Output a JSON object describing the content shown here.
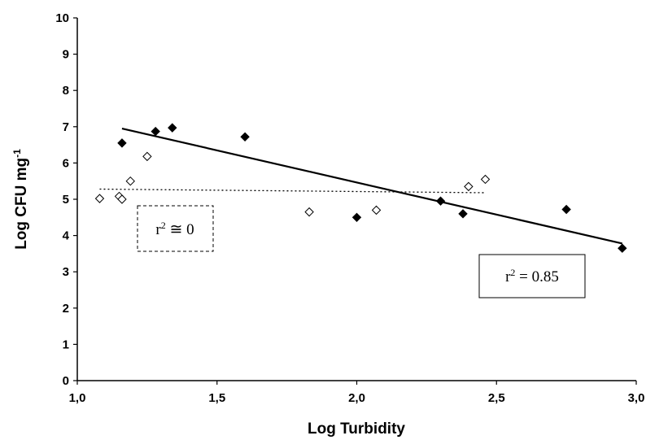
{
  "chart_data": {
    "type": "scatter",
    "title": "",
    "xlabel": "Log Turbidity",
    "ylabel_main": "Log CFU mg",
    "ylabel_sup": "-1",
    "xlim": [
      1.0,
      3.0
    ],
    "ylim": [
      0,
      10
    ],
    "x_ticks": [
      "1,0",
      "1,5",
      "2,0",
      "2,5",
      "3,0"
    ],
    "x_tick_values": [
      1.0,
      1.5,
      2.0,
      2.5,
      3.0
    ],
    "y_ticks": [
      "0",
      "1",
      "2",
      "3",
      "4",
      "5",
      "6",
      "7",
      "8",
      "9",
      "10"
    ],
    "y_tick_values": [
      0,
      1,
      2,
      3,
      4,
      5,
      6,
      7,
      8,
      9,
      10
    ],
    "grid": false,
    "series": [
      {
        "marker": "filled-diamond",
        "color": "#000000",
        "points": [
          [
            1.16,
            6.55
          ],
          [
            1.28,
            6.87
          ],
          [
            1.34,
            6.97
          ],
          [
            1.6,
            6.72
          ],
          [
            2.0,
            4.5
          ],
          [
            2.3,
            4.95
          ],
          [
            2.38,
            4.6
          ],
          [
            2.75,
            4.72
          ],
          [
            2.95,
            3.65
          ]
        ]
      },
      {
        "marker": "open-diamond",
        "color": "#000000",
        "points": [
          [
            1.08,
            5.02
          ],
          [
            1.15,
            5.08
          ],
          [
            1.16,
            5.0
          ],
          [
            1.19,
            5.5
          ],
          [
            1.25,
            6.18
          ],
          [
            1.83,
            4.65
          ],
          [
            2.07,
            4.7
          ],
          [
            2.4,
            5.35
          ],
          [
            2.46,
            5.55
          ]
        ]
      }
    ],
    "trendlines": [
      {
        "style": "solid",
        "from": [
          1.16,
          6.95
        ],
        "to": [
          2.95,
          3.78
        ]
      },
      {
        "style": "dotted",
        "from": [
          1.08,
          5.28
        ],
        "to": [
          2.46,
          5.18
        ]
      }
    ],
    "annotations": [
      {
        "id": "r2-zero",
        "text_main": "r",
        "text_sup": "2",
        "text_rest": " ≅ 0",
        "box": "dashed"
      },
      {
        "id": "r2-085",
        "text_main": "r",
        "text_sup": "2",
        "text_rest": " = 0.85",
        "box": "solid"
      }
    ]
  }
}
